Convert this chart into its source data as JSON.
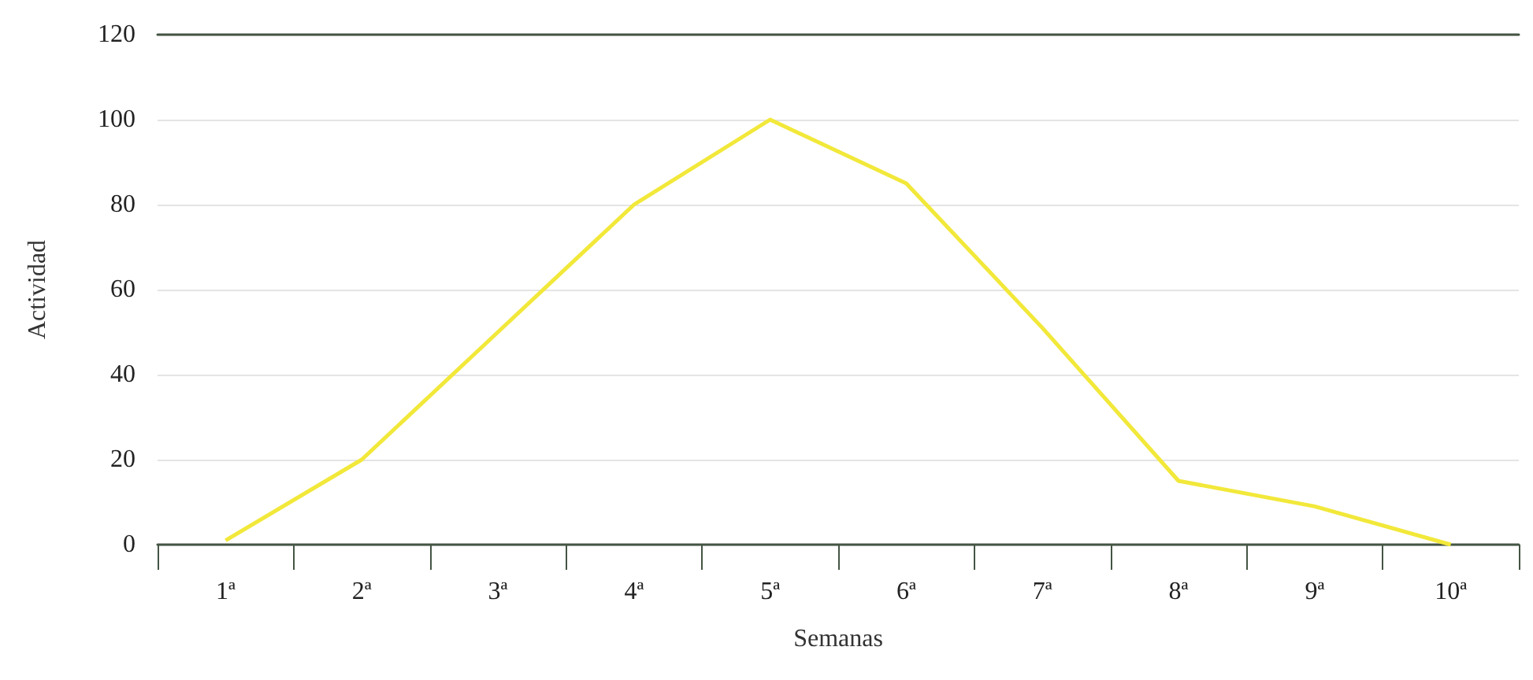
{
  "chart_data": {
    "type": "line",
    "xlabel": "Semanas",
    "ylabel": "Actividad",
    "categories": [
      "1ª",
      "2ª",
      "3ª",
      "4ª",
      "5ª",
      "6ª",
      "7ª",
      "8ª",
      "9ª",
      "10ª"
    ],
    "series": [
      {
        "color": "#f2e83a",
        "values": [
          1,
          20,
          50,
          80,
          100,
          85,
          51,
          15,
          9,
          0
        ]
      }
    ],
    "ylim": [
      0,
      120
    ],
    "yticks": [
      0,
      20,
      40,
      60,
      80,
      100,
      120
    ],
    "grid": "y",
    "marker": "none",
    "line_style": "solid"
  }
}
